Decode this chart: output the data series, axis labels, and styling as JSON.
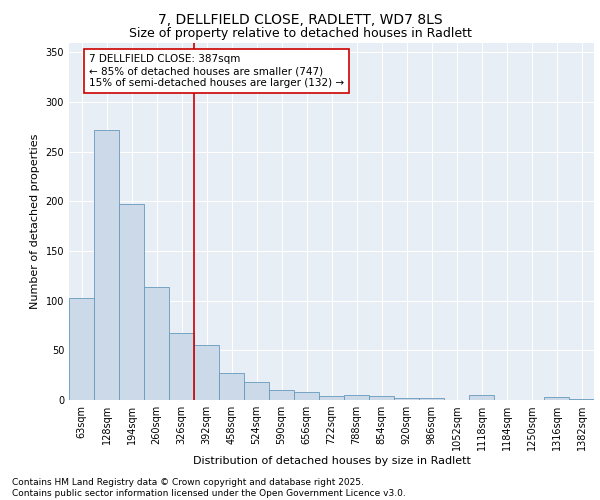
{
  "title_line1": "7, DELLFIELD CLOSE, RADLETT, WD7 8LS",
  "title_line2": "Size of property relative to detached houses in Radlett",
  "xlabel": "Distribution of detached houses by size in Radlett",
  "ylabel": "Number of detached properties",
  "categories": [
    "63sqm",
    "128sqm",
    "194sqm",
    "260sqm",
    "326sqm",
    "392sqm",
    "458sqm",
    "524sqm",
    "590sqm",
    "656sqm",
    "722sqm",
    "788sqm",
    "854sqm",
    "920sqm",
    "986sqm",
    "1052sqm",
    "1118sqm",
    "1184sqm",
    "1250sqm",
    "1316sqm",
    "1382sqm"
  ],
  "values": [
    103,
    272,
    197,
    114,
    67,
    55,
    27,
    18,
    10,
    8,
    4,
    5,
    4,
    2,
    2,
    0,
    5,
    0,
    0,
    3,
    1
  ],
  "bar_color": "#ccd9e8",
  "bar_edge_color": "#6699bb",
  "vline_x": 4.5,
  "vline_color": "#cc0000",
  "annotation_text": "7 DELLFIELD CLOSE: 387sqm\n← 85% of detached houses are smaller (747)\n15% of semi-detached houses are larger (132) →",
  "ylim": [
    0,
    360
  ],
  "yticks": [
    0,
    50,
    100,
    150,
    200,
    250,
    300,
    350
  ],
  "background_color": "#e8eef5",
  "footer_text": "Contains HM Land Registry data © Crown copyright and database right 2025.\nContains public sector information licensed under the Open Government Licence v3.0.",
  "title_fontsize": 10,
  "subtitle_fontsize": 9,
  "axis_label_fontsize": 8,
  "tick_fontsize": 7,
  "annotation_fontsize": 7.5,
  "footer_fontsize": 6.5
}
